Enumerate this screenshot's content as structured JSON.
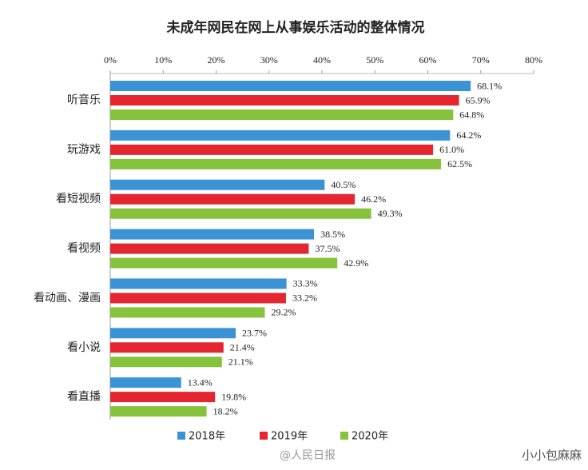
{
  "chart_data": {
    "type": "hbar",
    "title": "未成年网民在网上从事娱乐活动的整体情况",
    "categories": [
      "听音乐",
      "玩游戏",
      "看短视频",
      "看视频",
      "看动画、漫画",
      "看小说",
      "看直播"
    ],
    "series": [
      {
        "name": "2018年",
        "color": "#3b93d5",
        "values": [
          68.1,
          64.2,
          40.5,
          38.5,
          33.3,
          23.7,
          13.4
        ],
        "value_labels": [
          "68.1%",
          "64.2%",
          "40.5%",
          "38.5%",
          "33.3%",
          "23.7%",
          "13.4%"
        ]
      },
      {
        "name": "2019年",
        "color": "#e42630",
        "values": [
          65.9,
          61.0,
          46.2,
          37.5,
          33.2,
          21.4,
          19.8
        ],
        "value_labels": [
          "65.9%",
          "61.0%",
          "46.2%",
          "37.5%",
          "33.2%",
          "21.4%",
          "19.8%"
        ]
      },
      {
        "name": "2020年",
        "color": "#86c23c",
        "values": [
          64.8,
          62.5,
          49.3,
          42.9,
          29.2,
          21.1,
          18.2
        ],
        "value_labels": [
          "64.8%",
          "62.5%",
          "49.3%",
          "42.9%",
          "29.2%",
          "21.1%",
          "18.2%"
        ]
      }
    ],
    "xlim": [
      0,
      80
    ],
    "xticks": [
      {
        "value": 0,
        "label": "0%"
      },
      {
        "value": 10,
        "label": "10%"
      },
      {
        "value": 20,
        "label": "20%"
      },
      {
        "value": 30,
        "label": "30%"
      },
      {
        "value": 40,
        "label": "40%"
      },
      {
        "value": 50,
        "label": "50%"
      },
      {
        "value": 60,
        "label": "60%"
      },
      {
        "value": 70,
        "label": "70%"
      },
      {
        "value": 80,
        "label": "80%"
      }
    ],
    "watermarks": [
      "@人民日报",
      "小小包麻麻"
    ]
  }
}
